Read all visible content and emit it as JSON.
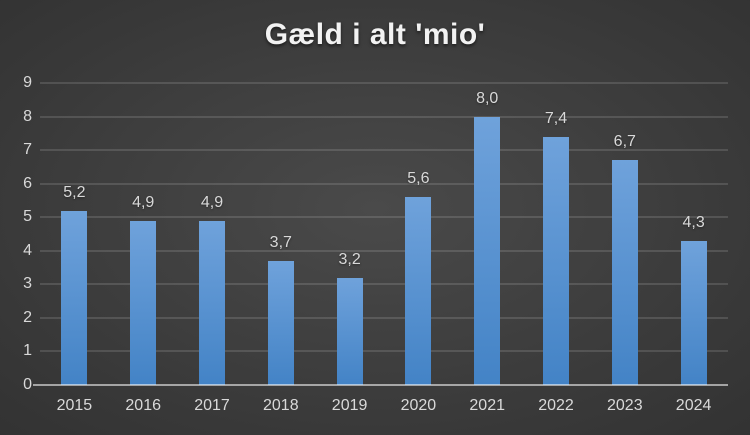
{
  "chart_data": {
    "type": "bar",
    "title": "Gæld i alt 'mio'",
    "categories": [
      "2015",
      "2016",
      "2017",
      "2018",
      "2019",
      "2020",
      "2021",
      "2022",
      "2023",
      "2024"
    ],
    "values": [
      5.2,
      4.9,
      4.9,
      3.7,
      3.2,
      5.6,
      8.0,
      7.4,
      6.7,
      4.3
    ],
    "value_labels": [
      "5,2",
      "4,9",
      "4,9",
      "3,7",
      "3,2",
      "5,6",
      "8,0",
      "7,4",
      "6,7",
      "4,3"
    ],
    "xlabel": "",
    "ylabel": "",
    "ylim": [
      0,
      9
    ],
    "ytick_step": 1,
    "ytick_labels": [
      "0",
      "1",
      "2",
      "3",
      "4",
      "5",
      "6",
      "7",
      "8",
      "9"
    ],
    "grid": true,
    "legend": "none",
    "colors": {
      "bar_top": "#6FA2DB",
      "bar_bottom": "#4383C6",
      "title_text": "#F2F2F2",
      "label_text": "#D9D9D9",
      "gridline": "rgba(255,255,255,0.13)",
      "axis_line": "rgba(255,255,255,0.55)",
      "background_center": "#4A4A4A",
      "background_mid": "#383838",
      "background_edge": "#242424"
    }
  }
}
